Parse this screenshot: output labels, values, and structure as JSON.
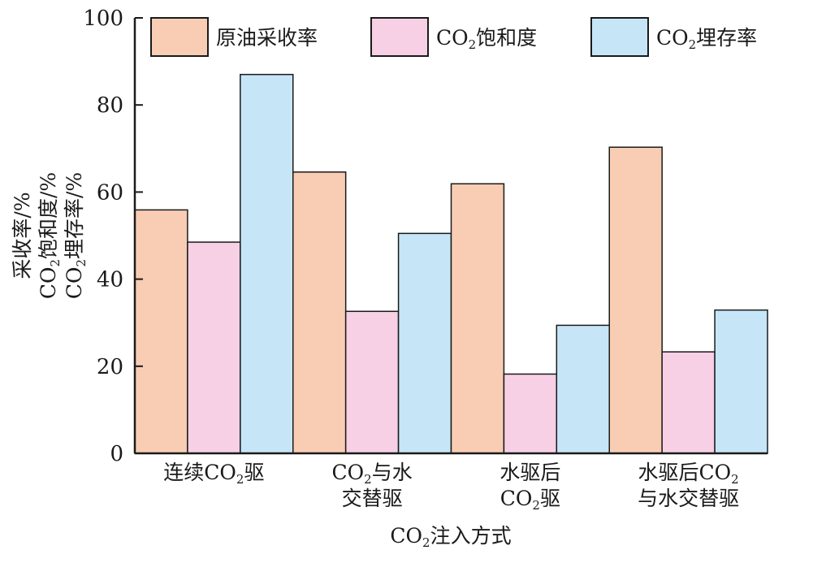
{
  "chart_data": {
    "type": "bar",
    "categories": [
      [
        "连续CO₂驱"
      ],
      [
        "CO₂与水",
        "交替驱"
      ],
      [
        "水驱后",
        "CO₂驱"
      ],
      [
        "水驱后CO₂",
        "与水交替驱"
      ]
    ],
    "series": [
      {
        "name": "原油采收率",
        "color": "#f8cdb3",
        "values": [
          55.9,
          64.6,
          61.9,
          70.3
        ]
      },
      {
        "name": "CO₂饱和度",
        "color": "#f7d0e5",
        "values": [
          48.5,
          32.6,
          18.2,
          23.3
        ]
      },
      {
        "name": "CO₂埋存率",
        "color": "#c6e6f8",
        "values": [
          87.0,
          50.5,
          29.4,
          32.9
        ]
      }
    ],
    "yticks": [
      "0",
      "20",
      "40",
      "60",
      "80",
      "100"
    ],
    "ylim": [
      0,
      100
    ],
    "xlabel": "CO₂注入方式",
    "ylabel": [
      "采收率/%",
      "CO₂饱和度/%",
      "CO₂埋存率/%"
    ],
    "legend_position": "top",
    "grid": false
  }
}
